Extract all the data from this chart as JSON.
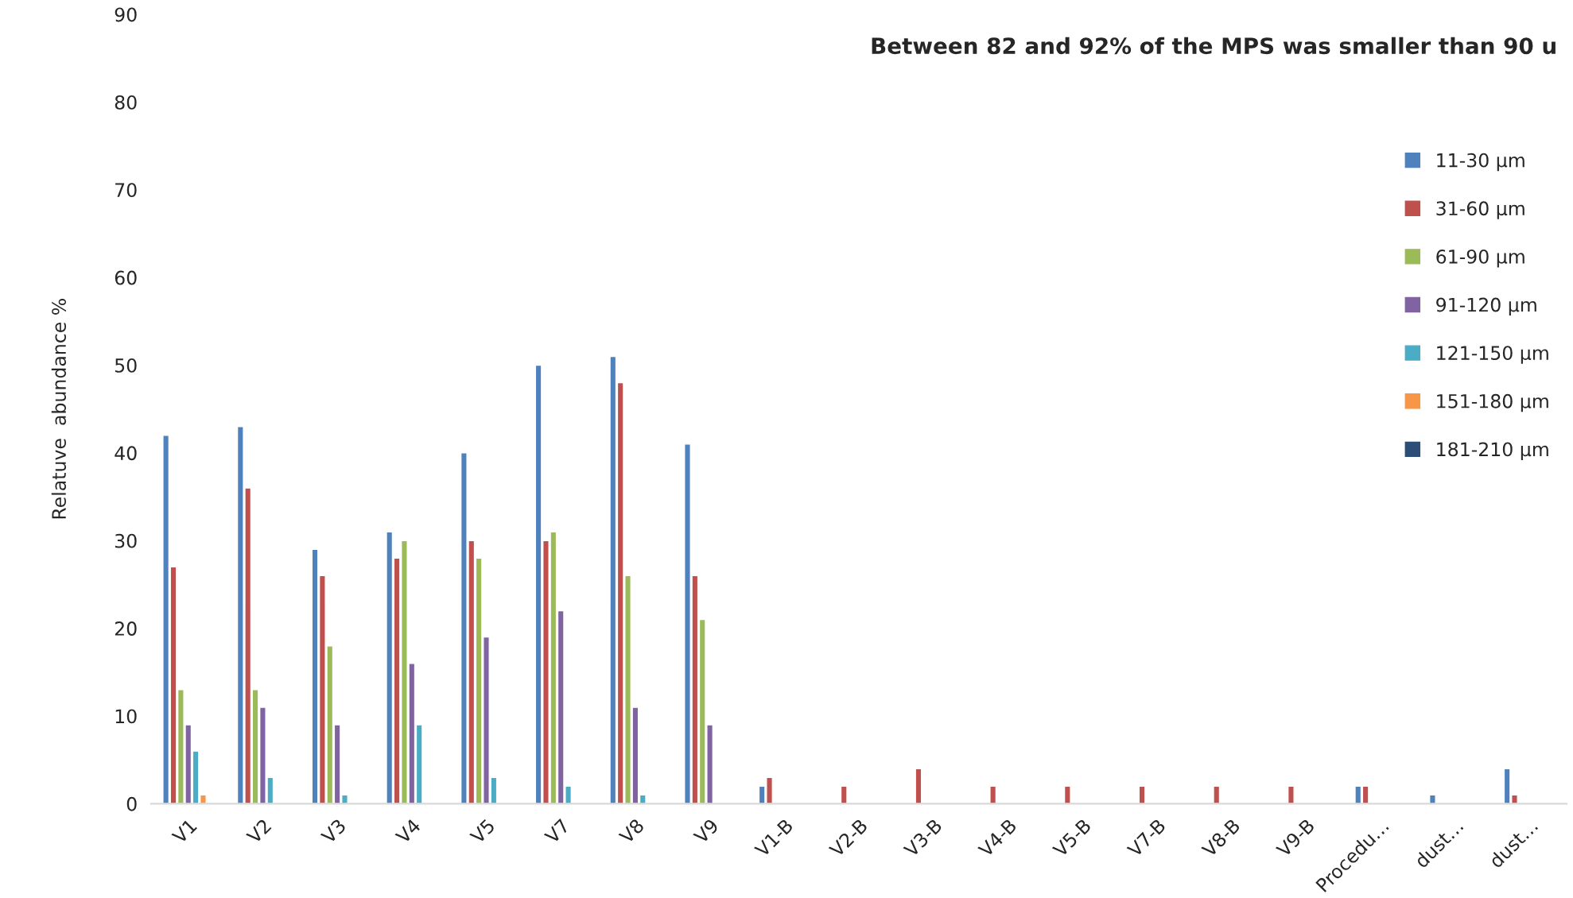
{
  "chart_data": {
    "type": "bar",
    "title": "Between 82 and 92% of the MPS was smaller than 90 u",
    "ylabel": "Relatuve  abundance %",
    "categories": [
      "V1",
      "V2",
      "V3",
      "V4",
      "V5",
      "V7",
      "V8",
      "V9",
      "V1-B",
      "V2-B",
      "V3-B",
      "V4-B",
      "V5-B",
      "V7-B",
      "V8-B",
      "V9-B",
      "Procedu…",
      "dust…",
      "dust…"
    ],
    "series": [
      {
        "name": "11-30 µm",
        "color": "#4f81bd",
        "values": [
          42,
          43,
          29,
          31,
          40,
          50,
          51,
          41,
          2,
          null,
          null,
          null,
          null,
          null,
          null,
          null,
          2,
          1,
          4
        ]
      },
      {
        "name": "31-60 µm",
        "color": "#c0504d",
        "values": [
          27,
          36,
          26,
          28,
          30,
          30,
          48,
          26,
          3,
          2,
          4,
          2,
          2,
          2,
          2,
          2,
          2,
          null,
          1
        ]
      },
      {
        "name": "61-90 µm",
        "color": "#9bbb59",
        "values": [
          13,
          13,
          18,
          30,
          28,
          31,
          26,
          21,
          null,
          null,
          null,
          null,
          null,
          null,
          null,
          null,
          null,
          null,
          null
        ]
      },
      {
        "name": "91-120 µm",
        "color": "#8064a2",
        "values": [
          9,
          11,
          9,
          16,
          19,
          22,
          11,
          9,
          null,
          null,
          null,
          null,
          null,
          null,
          null,
          null,
          null,
          null,
          null
        ]
      },
      {
        "name": "121-150 µm",
        "color": "#4bacc6",
        "values": [
          6,
          3,
          1,
          9,
          3,
          2,
          1,
          null,
          null,
          null,
          null,
          null,
          null,
          null,
          null,
          null,
          null,
          null,
          null
        ]
      },
      {
        "name": "151-180 µm",
        "color": "#f79646",
        "values": [
          1,
          null,
          null,
          null,
          null,
          null,
          null,
          null,
          null,
          null,
          null,
          null,
          null,
          null,
          null,
          null,
          null,
          null,
          null
        ]
      },
      {
        "name": "181-210 µm",
        "color": "#2c4d75",
        "values": [
          null,
          null,
          null,
          null,
          null,
          null,
          null,
          null,
          null,
          null,
          null,
          null,
          null,
          null,
          null,
          null,
          null,
          null,
          null
        ]
      }
    ],
    "ylim": [
      0,
      90
    ],
    "yticks": [
      0,
      10,
      20,
      30,
      40,
      50,
      60,
      70,
      80,
      90
    ],
    "grid": false,
    "legend": "right"
  }
}
